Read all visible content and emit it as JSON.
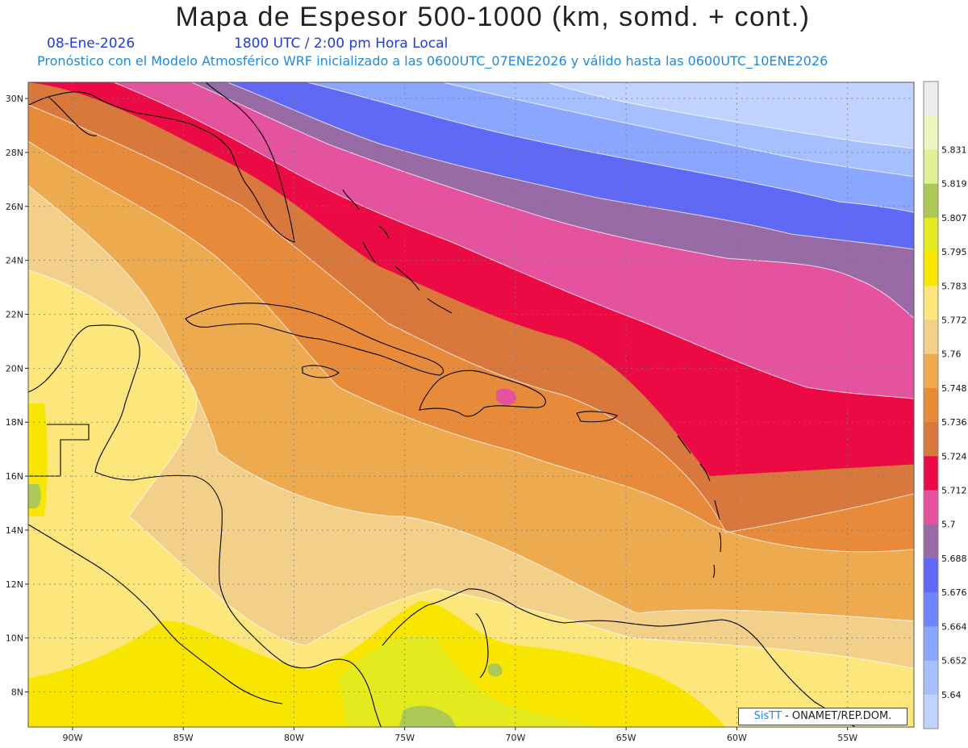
{
  "header": {
    "title": "Mapa de Espesor 500-1000 (km, somd. + cont.)",
    "date": "08-Ene-2026",
    "time": "1800 UTC / 2:00 pm Hora Local",
    "subtitle": "Pronóstico con el Modelo Atmosférico WRF inicializado a las 0600UTC_07ENE2026 y válido hasta las  0600UTC_10ENE2026"
  },
  "map": {
    "lon_range": [
      -92,
      -52
    ],
    "lat_range": [
      6.7,
      30.6
    ],
    "lat_ticks": [
      "30N",
      "28N",
      "26N",
      "24N",
      "22N",
      "20N",
      "18N",
      "16N",
      "14N",
      "12N",
      "10N",
      "8N"
    ],
    "lon_ticks": [
      "90W",
      "85W",
      "80W",
      "75W",
      "70W",
      "65W",
      "60W",
      "55W"
    ],
    "grid": true
  },
  "colorbar": {
    "unit": "km",
    "levels": [
      "5.64",
      "5.652",
      "5.664",
      "5.676",
      "5.688",
      "5.7",
      "5.712",
      "5.724",
      "5.736",
      "5.748",
      "5.76",
      "5.772",
      "5.783",
      "5.795",
      "5.807",
      "5.819",
      "5.831"
    ],
    "colors": [
      "#c2d2ff",
      "#a6c0ff",
      "#8aa6ff",
      "#6f86ff",
      "#5f69f5",
      "#986aa6",
      "#e5529d",
      "#ec0a44",
      "#d9783d",
      "#e78b3a",
      "#edaa4e",
      "#f3d08a",
      "#fde67c",
      "#f8e600",
      "#e3ea1d",
      "#acc956",
      "#e1f195",
      "#edf4c0",
      "#ececec"
    ]
  },
  "credit": {
    "brand": "SisTT",
    "text": "- ONAMET/REP.DOM."
  }
}
